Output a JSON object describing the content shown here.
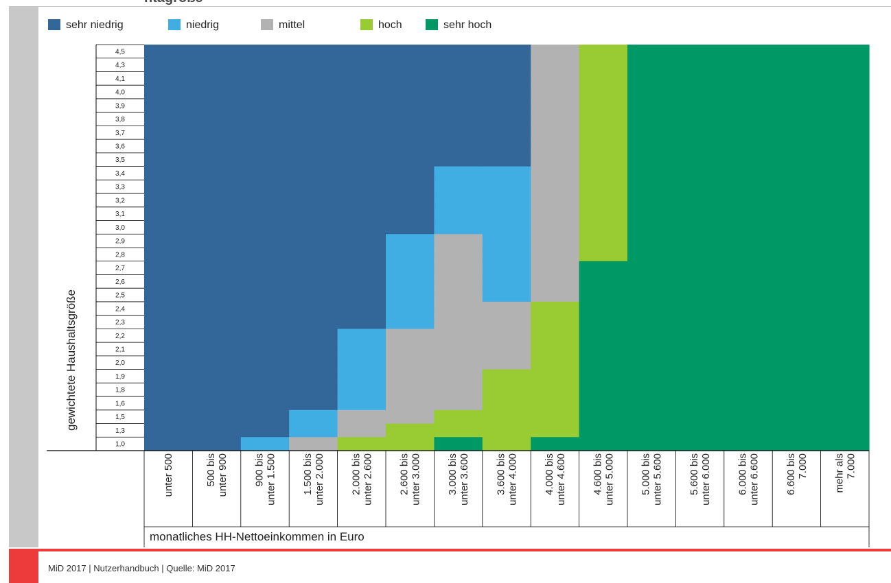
{
  "page": {
    "top_title_fragment": "ntagröße",
    "footer": "MiD 2017  |  Nutzerhandbuch   |  Quelle: MiD 2017"
  },
  "colors": {
    "sehr_niedrig": "#336699",
    "niedrig": "#40ade3",
    "mittel": "#b2b2b2",
    "hoch": "#99cc33",
    "sehr_hoch": "#009966",
    "accent_red": "#ed3a3a",
    "side_bar_gray": "#c8c8c8"
  },
  "legend": [
    {
      "label": "sehr niedrig",
      "color": "#336699"
    },
    {
      "label": "niedrig",
      "color": "#40ade3"
    },
    {
      "label": "mittel",
      "color": "#b2b2b2"
    },
    {
      "label": "hoch",
      "color": "#99cc33"
    },
    {
      "label": "sehr hoch",
      "color": "#009966"
    }
  ],
  "chart_data": {
    "type": "heatmap",
    "title": "",
    "xlabel": "monatliches HH-Nettoeinkommen in Euro",
    "ylabel": "gewichtete Haushaltsgröße",
    "categories_x": [
      "unter 500",
      "500 bis\nunter 900",
      "900 bis\nunter 1.500",
      "1.500 bis\nunter 2.000",
      "2.000 bis\nunter 2.600",
      "2.600 bis\nunter 3.000",
      "3.000 bis\nunter 3.600",
      "3.600 bis\nunter 4.000",
      "4.000 bis\nunter 4.600",
      "4.600 bis\nunter 5.000",
      "5.000 bis\nunter 5.600",
      "5.600 bis\nunter 6.000",
      "6.000 bis\nunter 6.600",
      "6.600 bis\n7.000",
      "mehr als\n7.000"
    ],
    "categories_y": [
      "4,5",
      "4,3",
      "4,1",
      "4,0",
      "3,9",
      "3,8",
      "3,7",
      "3,6",
      "3,5",
      "3,4",
      "3,3",
      "3,2",
      "3,1",
      "3,0",
      "2,9",
      "2,8",
      "2,7",
      "2,6",
      "2,5",
      "2,4",
      "2,3",
      "2,2",
      "2,1",
      "2,0",
      "1,9",
      "1,8",
      "1,6",
      "1,5",
      "1,3",
      "1,0"
    ],
    "class_labels": [
      "sehr niedrig",
      "niedrig",
      "mittel",
      "hoch",
      "sehr hoch"
    ],
    "class_upper_bounds_by_income_column": [
      [
        30,
        99,
        99,
        99
      ],
      [
        30,
        99,
        99,
        99
      ],
      [
        29,
        30,
        99,
        99
      ],
      [
        27,
        29,
        30,
        99
      ],
      [
        21,
        27,
        29,
        30
      ],
      [
        14,
        21,
        28,
        30
      ],
      [
        9,
        14,
        27,
        29
      ],
      [
        9,
        19,
        24,
        30
      ],
      [
        0,
        0,
        19,
        29
      ],
      [
        0,
        0,
        0,
        16
      ],
      [
        0,
        0,
        0,
        0
      ],
      [
        0,
        0,
        0,
        0
      ],
      [
        0,
        0,
        0,
        0
      ],
      [
        0,
        0,
        0,
        0
      ],
      [
        0,
        0,
        0,
        0
      ]
    ],
    "grid": true
  }
}
